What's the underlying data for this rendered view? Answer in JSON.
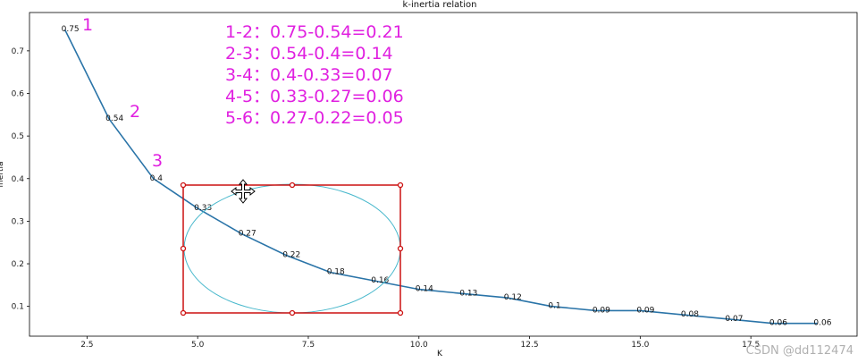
{
  "chart_data": {
    "type": "line",
    "title": "k-inertia relation",
    "xlabel": "K",
    "ylabel": "inertia",
    "xlim": [
      1.2,
      19.9
    ],
    "ylim": [
      0.03,
      0.79
    ],
    "xticks": [
      "2.5",
      "5.0",
      "7.5",
      "10.0",
      "12.5",
      "15.0",
      "17.5"
    ],
    "xtick_values": [
      2.5,
      5.0,
      7.5,
      10.0,
      12.5,
      15.0,
      17.5
    ],
    "yticks": [
      "0.1",
      "0.2",
      "0.3",
      "0.4",
      "0.5",
      "0.6",
      "0.7"
    ],
    "ytick_values": [
      0.1,
      0.2,
      0.3,
      0.4,
      0.5,
      0.6,
      0.7
    ],
    "grid": false,
    "x": [
      2,
      3,
      4,
      5,
      6,
      7,
      8,
      9,
      10,
      11,
      12,
      13,
      14,
      15,
      16,
      17,
      18,
      19
    ],
    "values": [
      0.75,
      0.54,
      0.4,
      0.33,
      0.27,
      0.22,
      0.18,
      0.16,
      0.14,
      0.13,
      0.12,
      0.1,
      0.09,
      0.09,
      0.08,
      0.07,
      0.06,
      0.06
    ],
    "point_labels": [
      "0.75",
      "0.54",
      "0.4",
      "0.33",
      "0.27",
      "0.22",
      "0.18",
      "0.16",
      "0.14",
      "0.13",
      "0.12",
      "0.1",
      "0.09",
      "0.09",
      "0.08",
      "0.07",
      "0.06",
      "0.06"
    ],
    "line_color": "#2a74a8"
  },
  "annotations": {
    "segment_numbers": [
      "1",
      "2",
      "3"
    ],
    "differences": [
      "1-2：0.75-0.54=0.21",
      "2-3：0.54-0.4=0.14",
      "3-4：0.4-0.33=0.07",
      "4-5：0.33-0.27=0.06",
      "5-6：0.27-0.22=0.05"
    ],
    "annotation_color": "#e020e0",
    "selection_box_color": "#cc1111",
    "ellipse_color": "#48b8cc"
  },
  "watermark": "CSDN @dd112474"
}
